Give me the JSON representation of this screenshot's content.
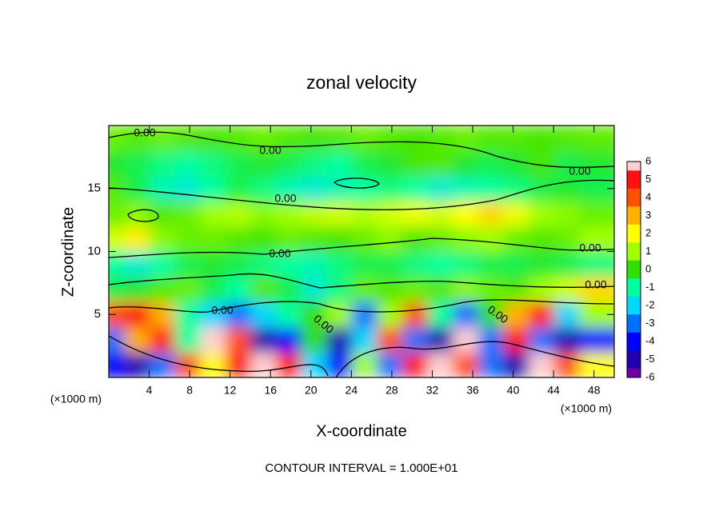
{
  "chart_data": {
    "type": "heatmap",
    "title": "zonal velocity",
    "x_label": "X-coordinate",
    "y_label": "Z-coordinate",
    "x_unit_label": "(×1000 m)",
    "footnote": "CONTOUR INTERVAL = 1.000E+01",
    "xlim": [
      0,
      50
    ],
    "xticks": [
      4,
      8,
      12,
      16,
      20,
      24,
      28,
      32,
      36,
      40,
      44,
      48
    ],
    "ylim": [
      0,
      20
    ],
    "yticks": [
      5,
      10,
      15
    ],
    "colorbar_ticks": [
      6,
      5,
      4,
      3,
      2,
      1,
      0,
      -1,
      -2,
      -3,
      -4,
      -5,
      -6
    ],
    "colorscale": [
      "#ffd0d0",
      "#ff1010",
      "#ff5000",
      "#ffb000",
      "#ffff00",
      "#a0ff00",
      "#30e000",
      "#00ffa0",
      "#00d8ff",
      "#0070ff",
      "#0000ff",
      "#2000b0",
      "#7000a0"
    ],
    "contour_labels": [
      "0.00",
      "0.00",
      "0.00",
      "0.00",
      "0.00",
      "0.00",
      "0.00",
      "0.00",
      "0.00",
      "0.00"
    ],
    "values": [
      [
        -4,
        -5,
        -3,
        4,
        2,
        5,
        6,
        5,
        -2,
        -4,
        1,
        -3,
        5,
        6,
        4,
        -3,
        -5,
        6,
        4,
        2
      ],
      [
        -3,
        3,
        5,
        -1,
        6,
        4,
        -5,
        -4,
        0,
        -5,
        -2,
        4,
        -3,
        -5,
        6,
        -3,
        5,
        -3,
        -5,
        -4
      ],
      [
        4,
        5,
        3,
        -1,
        -2,
        -3,
        -2,
        -1,
        0,
        1,
        -3,
        1,
        4,
        -1,
        -3,
        0,
        3,
        5,
        -2,
        1
      ],
      [
        -0.5,
        -0.3,
        0.3,
        0.5,
        -0.5,
        -1,
        0.3,
        -0.5,
        -1.5,
        -0.8,
        0.5,
        0.3,
        0.5,
        0.3,
        0.8,
        0.5,
        0.3,
        1,
        1.5,
        2.5
      ],
      [
        -1,
        -1.5,
        -1,
        -0.5,
        -0.3,
        -0.5,
        -0.8,
        -1,
        -1.2,
        -0.8,
        -0.5,
        -0.5,
        -0.8,
        -1,
        -0.8,
        -0.5,
        -0.5,
        -0.3,
        -0.5,
        -0.8
      ],
      [
        1.5,
        2.2,
        0.8,
        0.5,
        0.5,
        0.3,
        0.2,
        0.5,
        0.3,
        0.2,
        0.5,
        0.8,
        0.3,
        0.5,
        0.8,
        1,
        0.5,
        0.3,
        0.5,
        1
      ],
      [
        0.5,
        0.8,
        0.3,
        0.5,
        1,
        1.2,
        0.8,
        1,
        1.3,
        1.5,
        1.2,
        1.5,
        1.8,
        1.5,
        2,
        2.5,
        1.8,
        1,
        0.8,
        0.5
      ],
      [
        0.3,
        -0.5,
        -1.2,
        -1.5,
        -1,
        -0.5,
        -0.8,
        -1.2,
        -1.5,
        -1.2,
        -1,
        -0.8,
        -1,
        -1.5,
        -1.2,
        -1,
        -0.8,
        -0.5,
        -0.3,
        -0.5
      ],
      [
        -0.3,
        -0.5,
        -0.8,
        -1,
        -0.8,
        -0.5,
        -0.3,
        -0.5,
        -0.8,
        -1,
        -0.5,
        -0.3,
        0.2,
        0.3,
        -0.3,
        -0.5,
        -0.3,
        0.2,
        -0.5,
        -0.3
      ],
      [
        0.5,
        0.3,
        0.5,
        0.3,
        0.2,
        0.3,
        0.5,
        0.3,
        0.2,
        0.3,
        0.5,
        0.3,
        0.2,
        0.3,
        0.5,
        0.3,
        0.3,
        0.2,
        0.3,
        0.4
      ]
    ]
  }
}
